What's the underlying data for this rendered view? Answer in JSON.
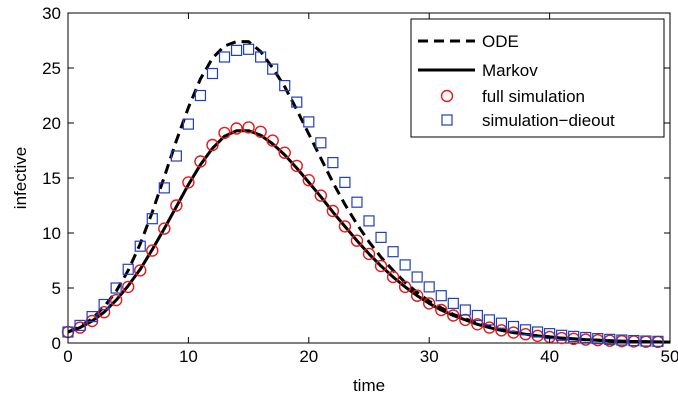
{
  "chart_data": {
    "type": "line",
    "xlabel": "time",
    "ylabel": "infective",
    "xlim": [
      0,
      50
    ],
    "ylim": [
      0,
      30
    ],
    "xticks": [
      0,
      10,
      20,
      30,
      40,
      50
    ],
    "yticks": [
      0,
      5,
      10,
      15,
      20,
      25,
      30
    ],
    "grid": false,
    "legend_position": "top-right",
    "series": [
      {
        "name": "ODE",
        "style": "dashed-line",
        "color": "#000000",
        "x": [
          0,
          1,
          2,
          3,
          4,
          5,
          6,
          7,
          8,
          9,
          10,
          11,
          12,
          13,
          14,
          15,
          16,
          17,
          18,
          19,
          20,
          21,
          22,
          23,
          24,
          25,
          26,
          27,
          28,
          29,
          30,
          31,
          32,
          33,
          34,
          35,
          36,
          37,
          38,
          39,
          40,
          41,
          42,
          43,
          44,
          45,
          46,
          47,
          48,
          49,
          50
        ],
        "values": [
          1.0,
          1.5,
          2.2,
          3.3,
          4.7,
          6.6,
          9.0,
          11.9,
          15.1,
          18.4,
          21.4,
          24.0,
          25.9,
          27.0,
          27.4,
          27.4,
          26.5,
          25.0,
          23.3,
          21.2,
          19.0,
          16.8,
          14.6,
          12.6,
          10.8,
          9.2,
          7.8,
          6.6,
          5.5,
          4.6,
          3.8,
          3.2,
          2.6,
          2.2,
          1.8,
          1.5,
          1.2,
          1.0,
          0.8,
          0.65,
          0.55,
          0.45,
          0.37,
          0.3,
          0.25,
          0.2,
          0.16,
          0.13,
          0.11,
          0.09,
          0.07
        ]
      },
      {
        "name": "Markov",
        "style": "solid-line",
        "color": "#000000",
        "x": [
          0,
          1,
          2,
          3,
          4,
          5,
          6,
          7,
          8,
          9,
          10,
          11,
          12,
          13,
          14,
          15,
          16,
          17,
          18,
          19,
          20,
          21,
          22,
          23,
          24,
          25,
          26,
          27,
          28,
          29,
          30,
          31,
          32,
          33,
          34,
          35,
          36,
          37,
          38,
          39,
          40,
          41,
          42,
          43,
          44,
          45,
          46,
          47,
          48,
          49,
          50
        ],
        "values": [
          1.0,
          1.4,
          2.0,
          2.8,
          3.9,
          5.2,
          6.7,
          8.5,
          10.4,
          12.4,
          14.4,
          16.2,
          17.7,
          18.8,
          19.3,
          19.3,
          18.9,
          18.1,
          17.1,
          15.9,
          14.6,
          13.3,
          11.9,
          10.6,
          9.3,
          8.1,
          7.0,
          6.0,
          5.1,
          4.3,
          3.6,
          3.0,
          2.5,
          2.1,
          1.7,
          1.4,
          1.15,
          0.95,
          0.8,
          0.65,
          0.55,
          0.45,
          0.38,
          0.31,
          0.26,
          0.21,
          0.17,
          0.14,
          0.12,
          0.1,
          0.08
        ]
      },
      {
        "name": "full simulation",
        "style": "circle-markers",
        "color": "#e41a1c",
        "x": [
          0,
          1,
          2,
          3,
          4,
          5,
          6,
          7,
          8,
          9,
          10,
          11,
          12,
          13,
          14,
          15,
          16,
          17,
          18,
          19,
          20,
          21,
          22,
          23,
          24,
          25,
          26,
          27,
          28,
          29,
          30,
          31,
          32,
          33,
          34,
          35,
          36,
          37,
          38,
          39,
          40,
          41,
          42,
          43,
          44,
          45,
          46,
          47,
          48,
          49
        ],
        "values": [
          1.0,
          1.4,
          2.0,
          2.8,
          3.9,
          5.1,
          6.6,
          8.4,
          10.4,
          12.5,
          14.6,
          16.5,
          18.0,
          19.1,
          19.5,
          19.6,
          19.2,
          18.4,
          17.3,
          16.1,
          14.8,
          13.4,
          12.0,
          10.6,
          9.3,
          8.1,
          7.0,
          6.0,
          5.1,
          4.3,
          3.6,
          3.0,
          2.5,
          2.1,
          1.7,
          1.4,
          1.15,
          0.95,
          0.8,
          0.65,
          0.55,
          0.45,
          0.38,
          0.31,
          0.26,
          0.21,
          0.17,
          0.14,
          0.12,
          0.1
        ]
      },
      {
        "name": "simulation−dieout",
        "style": "square-markers",
        "color": "#1f3fbf",
        "x": [
          0,
          1,
          2,
          3,
          4,
          5,
          6,
          7,
          8,
          9,
          10,
          11,
          12,
          13,
          14,
          15,
          16,
          17,
          18,
          19,
          20,
          21,
          22,
          23,
          24,
          25,
          26,
          27,
          28,
          29,
          30,
          31,
          32,
          33,
          34,
          35,
          36,
          37,
          38,
          39,
          40,
          41,
          42,
          43,
          44,
          45,
          46,
          47,
          48,
          49
        ],
        "values": [
          1.0,
          1.6,
          2.4,
          3.5,
          5.0,
          6.7,
          8.8,
          11.3,
          14.1,
          17.0,
          19.9,
          22.5,
          24.5,
          26.0,
          26.6,
          26.7,
          26.0,
          24.9,
          23.4,
          21.9,
          20.1,
          18.2,
          16.4,
          14.6,
          12.8,
          11.1,
          9.6,
          8.3,
          7.1,
          6.0,
          5.1,
          4.3,
          3.6,
          3.0,
          2.5,
          2.1,
          1.8,
          1.5,
          1.2,
          1.0,
          0.85,
          0.7,
          0.6,
          0.5,
          0.4,
          0.33,
          0.27,
          0.22,
          0.18,
          0.15
        ]
      }
    ]
  }
}
